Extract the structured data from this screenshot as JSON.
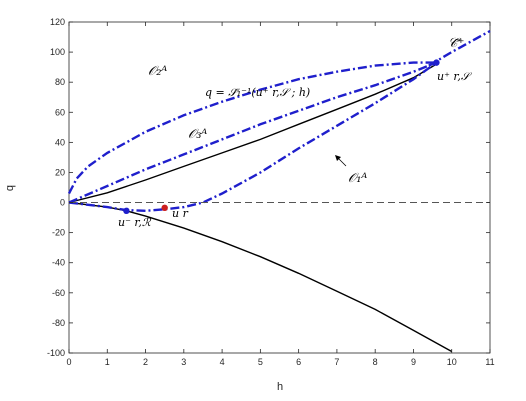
{
  "chart_data": {
    "type": "line",
    "xlabel": "h",
    "ylabel": "q",
    "xlim": [
      0,
      11
    ],
    "ylim": [
      -100,
      120
    ],
    "xticks": [
      "0",
      "1",
      "2",
      "3",
      "4",
      "5",
      "6",
      "7",
      "8",
      "9",
      "10",
      "11"
    ],
    "yticks": [
      "-100",
      "-80",
      "-60",
      "-40",
      "-20",
      "0",
      "20",
      "40",
      "60",
      "80",
      "100",
      "120"
    ],
    "grid": false,
    "series": [
      {
        "style": "solid",
        "color": "#000000",
        "x": [
          0,
          1,
          2,
          3,
          4,
          5,
          6,
          7,
          8,
          9,
          9.6
        ],
        "y": [
          0,
          6.5,
          15,
          24,
          33,
          42,
          52,
          62,
          72,
          83,
          92
        ]
      },
      {
        "style": "solid",
        "color": "#000000",
        "x": [
          0,
          0.5,
          1,
          1.5,
          2,
          3,
          4,
          5,
          6,
          7,
          8,
          9,
          10
        ],
        "y": [
          0,
          -1.5,
          -3,
          -5.5,
          -9,
          -17,
          -26,
          -36,
          -47,
          -59,
          -71,
          -85,
          -99
        ]
      },
      {
        "style": "dashdot",
        "color": "#1f1fcc",
        "x": [
          0,
          0.2,
          0.5,
          1,
          1.5,
          2,
          3,
          4,
          5,
          6,
          7,
          8,
          9,
          9.6
        ],
        "y": [
          6,
          16,
          24,
          33,
          40,
          47,
          58,
          67,
          75,
          82,
          87,
          91,
          93,
          93
        ]
      },
      {
        "style": "dashdot",
        "color": "#1f1fcc",
        "x": [
          0,
          1,
          2,
          3,
          4,
          5,
          6,
          7,
          8,
          9,
          9.6
        ],
        "y": [
          0,
          11,
          22,
          32,
          42,
          52,
          61,
          70,
          78,
          87,
          93
        ]
      },
      {
        "style": "dashdot",
        "color": "#1f1fcc",
        "x": [
          0,
          0.5,
          1,
          1.5,
          2,
          2.5,
          3,
          3.5,
          4,
          5,
          6,
          7,
          8,
          9,
          9.6
        ],
        "y": [
          0,
          -1.5,
          -3,
          -5,
          -5.5,
          -4.5,
          -3,
          0,
          6,
          20,
          36,
          51,
          66,
          82,
          93
        ]
      },
      {
        "style": "dashdot",
        "color": "#1f1fcc",
        "x": [
          9.4,
          10,
          11
        ],
        "y": [
          91,
          100,
          114
        ]
      },
      {
        "style": "dashed",
        "color": "#555555",
        "x": [
          0,
          11
        ],
        "y": [
          0,
          0
        ]
      }
    ],
    "points": [
      {
        "x": 1.5,
        "y": -5.5,
        "color": "#1f1fcc"
      },
      {
        "x": 2.5,
        "y": -3.5,
        "color": "#cc1f1f"
      },
      {
        "x": 9.6,
        "y": 93,
        "color": "#1f1fcc"
      }
    ],
    "annotations": {
      "o2": "𝒪₂ᴬ",
      "o3": "𝒪₃ᴬ",
      "o1": "𝒪₁ᴬ",
      "curve_label": "q = 𝒮̃₁⁻¹(u⁺ r,𝒮 ; h)",
      "cplus": "𝒞̃⁺",
      "ur_minus": "u⁻ r,ℛ",
      "ur": "u r",
      "ur_plus": "u⁺ r,𝒮"
    }
  }
}
